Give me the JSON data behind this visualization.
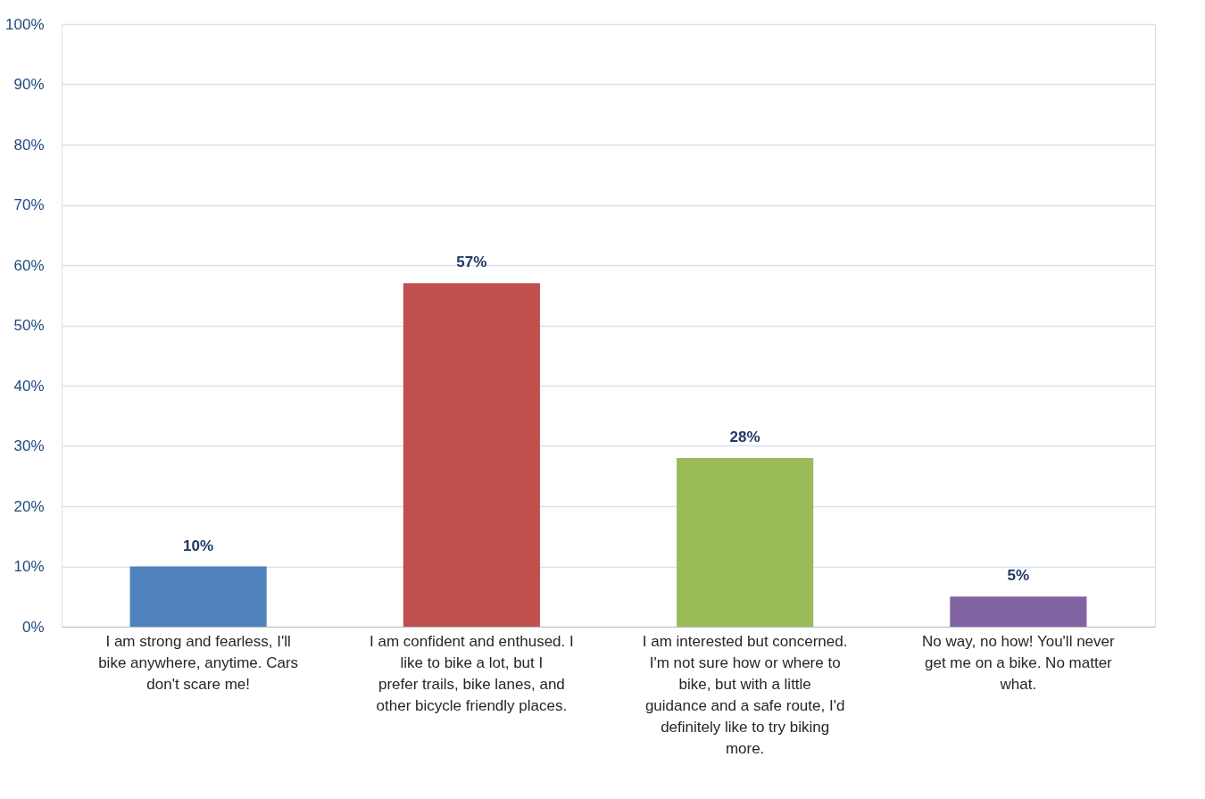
{
  "chart_data": {
    "type": "bar",
    "categories": [
      "I am strong and fearless, I'll bike anywhere, anytime. Cars don't scare me!",
      "I am confident and enthused. I like to bike a lot, but I prefer trails, bike lanes, and other bicycle friendly places.",
      "I am interested but concerned. I'm not sure how or where to bike, but with a little guidance and a safe route, I'd definitely like to try biking more.",
      "No way, no how! You'll never get me on a bike. No matter what."
    ],
    "values": [
      10,
      57,
      28,
      5
    ],
    "colors": [
      "#4f81bd",
      "#c0504d",
      "#9bbb59",
      "#8064a2"
    ],
    "value_labels": [
      "10%",
      "57%",
      "28%",
      "5%"
    ],
    "ylim": [
      0,
      100
    ],
    "yticks": [
      {
        "value": 0,
        "label": "0%"
      },
      {
        "value": 10,
        "label": "10%"
      },
      {
        "value": 20,
        "label": "20%"
      },
      {
        "value": 30,
        "label": "30%"
      },
      {
        "value": 40,
        "label": "40%"
      },
      {
        "value": 50,
        "label": "50%"
      },
      {
        "value": 60,
        "label": "60%"
      },
      {
        "value": 70,
        "label": "70%"
      },
      {
        "value": 80,
        "label": "80%"
      },
      {
        "value": 90,
        "label": "90%"
      },
      {
        "value": 100,
        "label": "100%"
      }
    ],
    "grid": "y",
    "legend": false
  }
}
